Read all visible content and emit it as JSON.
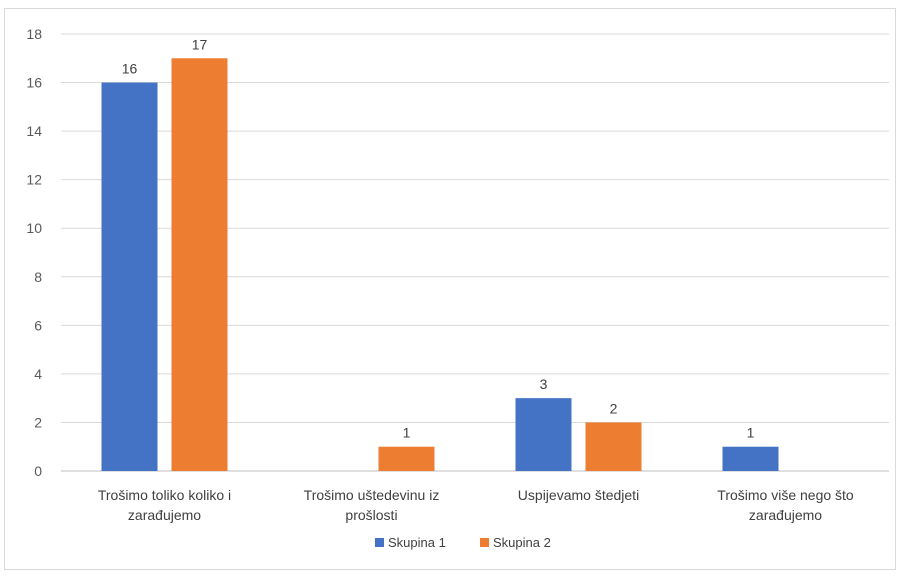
{
  "chart_data": {
    "type": "bar",
    "title": "",
    "xlabel": "",
    "ylabel": "",
    "ylim": [
      0,
      18
    ],
    "ytick_step": 2,
    "grid": true,
    "legend_position": "bottom",
    "categories": [
      [
        "Trošimo toliko koliko i",
        "zarađujemo"
      ],
      [
        "Trošimo uštedevinu iz",
        "prošlosti"
      ],
      [
        "Uspijevamo štedjeti"
      ],
      [
        "Trošimo više nego što",
        "zarađujemo"
      ]
    ],
    "series": [
      {
        "name": "Skupina 1",
        "color": "#4472c4",
        "values": [
          16,
          0,
          3,
          1
        ]
      },
      {
        "name": "Skupina 2",
        "color": "#ed7d31",
        "values": [
          17,
          1,
          2,
          0
        ]
      }
    ]
  }
}
